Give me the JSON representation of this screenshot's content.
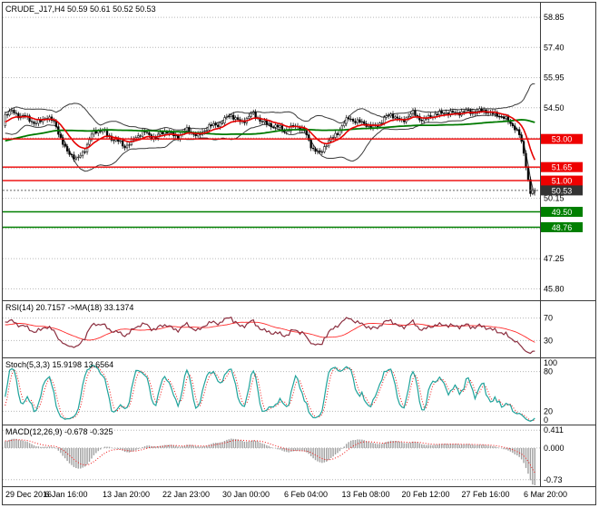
{
  "chart_data": {
    "type": "candlestick",
    "symbol": "CRUDE_J17",
    "timeframe": "H4",
    "title": "CRUDE_J17,H4 50.59 50.61 50.52 50.53",
    "last_quote": {
      "open": 50.59,
      "high": 50.61,
      "low": 50.52,
      "close": 50.53
    },
    "y_axis": {
      "range": [
        45.25,
        59.55
      ],
      "gridlines": [
        58.85,
        57.4,
        55.95,
        54.5,
        53.05,
        51.6,
        50.15,
        48.7,
        47.25,
        45.8
      ]
    },
    "x_axis": {
      "labels": [
        "29 Dec 2016",
        "6 Jan 16:00",
        "13 Jan 20:00",
        "22 Jan 23:00",
        "30 Jan 00:00",
        "6 Feb 04:00",
        "13 Feb 08:00",
        "20 Feb 12:00",
        "27 Feb 16:00",
        "6 Mar 20:00"
      ]
    },
    "bar_count": 240,
    "price_path": [
      [
        0.0,
        54.1
      ],
      [
        0.015,
        54.35
      ],
      [
        0.035,
        54.05
      ],
      [
        0.055,
        53.75
      ],
      [
        0.075,
        54.05
      ],
      [
        0.095,
        53.7
      ],
      [
        0.115,
        52.45
      ],
      [
        0.135,
        51.95
      ],
      [
        0.15,
        52.55
      ],
      [
        0.165,
        53.25
      ],
      [
        0.185,
        53.45
      ],
      [
        0.205,
        52.95
      ],
      [
        0.225,
        52.65
      ],
      [
        0.245,
        53.05
      ],
      [
        0.265,
        53.3
      ],
      [
        0.285,
        53.1
      ],
      [
        0.305,
        53.35
      ],
      [
        0.325,
        53.15
      ],
      [
        0.345,
        53.4
      ],
      [
        0.365,
        53.2
      ],
      [
        0.385,
        53.55
      ],
      [
        0.405,
        53.8
      ],
      [
        0.425,
        54.1
      ],
      [
        0.445,
        53.85
      ],
      [
        0.465,
        54.15
      ],
      [
        0.485,
        53.9
      ],
      [
        0.505,
        53.6
      ],
      [
        0.525,
        53.45
      ],
      [
        0.545,
        53.6
      ],
      [
        0.565,
        53.4
      ],
      [
        0.58,
        52.6
      ],
      [
        0.595,
        52.2
      ],
      [
        0.61,
        52.95
      ],
      [
        0.63,
        53.35
      ],
      [
        0.65,
        54.05
      ],
      [
        0.67,
        53.8
      ],
      [
        0.69,
        53.55
      ],
      [
        0.71,
        53.85
      ],
      [
        0.73,
        54.15
      ],
      [
        0.75,
        53.9
      ],
      [
        0.77,
        54.2
      ],
      [
        0.79,
        53.95
      ],
      [
        0.81,
        54.1
      ],
      [
        0.83,
        54.35
      ],
      [
        0.85,
        54.15
      ],
      [
        0.87,
        54.4
      ],
      [
        0.89,
        54.25
      ],
      [
        0.91,
        54.4
      ],
      [
        0.93,
        54.1
      ],
      [
        0.945,
        53.95
      ],
      [
        0.96,
        53.7
      ],
      [
        0.972,
        53.1
      ],
      [
        0.982,
        51.9
      ],
      [
        0.991,
        50.45
      ],
      [
        1.0,
        50.53
      ]
    ],
    "levels": [
      {
        "label": "53.00",
        "value": 53.0,
        "color": "#ee0000"
      },
      {
        "label": "51.65",
        "value": 51.65,
        "color": "#ee0000"
      },
      {
        "label": "51.00",
        "value": 51.0,
        "color": "#ee0000"
      },
      {
        "label": "49.50",
        "value": 49.5,
        "color": "#007f00"
      },
      {
        "label": "48.76",
        "value": 48.76,
        "color": "#007f00"
      }
    ],
    "current_price": {
      "label": "50.53",
      "value": 50.53
    },
    "overlays": [
      {
        "name": "Bollinger Bands"
      },
      {
        "name": "Moving Average fast (red)"
      },
      {
        "name": "Moving Average slow (green)"
      }
    ],
    "subcharts": [
      {
        "name": "RSI",
        "type": "line",
        "label": "RSI(14) 20.7157 ->MA(18) 33.1374",
        "values": {
          "rsi": 20.7157,
          "ma": 33.1374
        },
        "range": [
          0,
          100
        ],
        "level_lines": [
          70,
          30
        ],
        "axis_labels": [
          [
            70,
            "70"
          ],
          [
            30,
            "30"
          ]
        ],
        "colors": {
          "main": "#8b2e3f",
          "signal": "#ff2a2a"
        }
      },
      {
        "name": "Stochastic",
        "type": "line",
        "label": "Stoch(5,3,3) 15.9198 13.6564",
        "values": {
          "main": 15.9198,
          "signal": 13.6564
        },
        "range": [
          0,
          100
        ],
        "level_lines": [
          80,
          20
        ],
        "axis_labels": [
          [
            100,
            "100"
          ],
          [
            80,
            "80"
          ],
          [
            20,
            "20"
          ],
          [
            0,
            "0"
          ]
        ],
        "colors": {
          "main": "#1fa39b",
          "signal": "#ee1111"
        }
      },
      {
        "name": "MACD",
        "type": "histogram",
        "label": "MACD(12,26,9) -0.678 -0.325",
        "values": {
          "macd": -0.678,
          "signal": -0.325
        },
        "range": [
          -0.88,
          0.52
        ],
        "level_lines": [
          0.411,
          0.0,
          -0.73
        ],
        "axis_labels": [
          [
            0.411,
            "0.411"
          ],
          [
            0.0,
            "0.000"
          ],
          [
            -0.73,
            "-0.73"
          ]
        ],
        "colors": {
          "hist": "#a0a0a0",
          "signal": "#ee1111"
        }
      }
    ]
  },
  "colors": {
    "grid": "#b6b6b6",
    "axis_text": "#000000",
    "badge_text": "#ffffff",
    "candle_up": "#ffffff",
    "candle_down": "#000000",
    "candle_outline": "#000000",
    "bollinger": "#3a3a3a",
    "ma_fast": "#e60000",
    "ma_slow": "#007a00",
    "current_price_badge": "#333333"
  }
}
